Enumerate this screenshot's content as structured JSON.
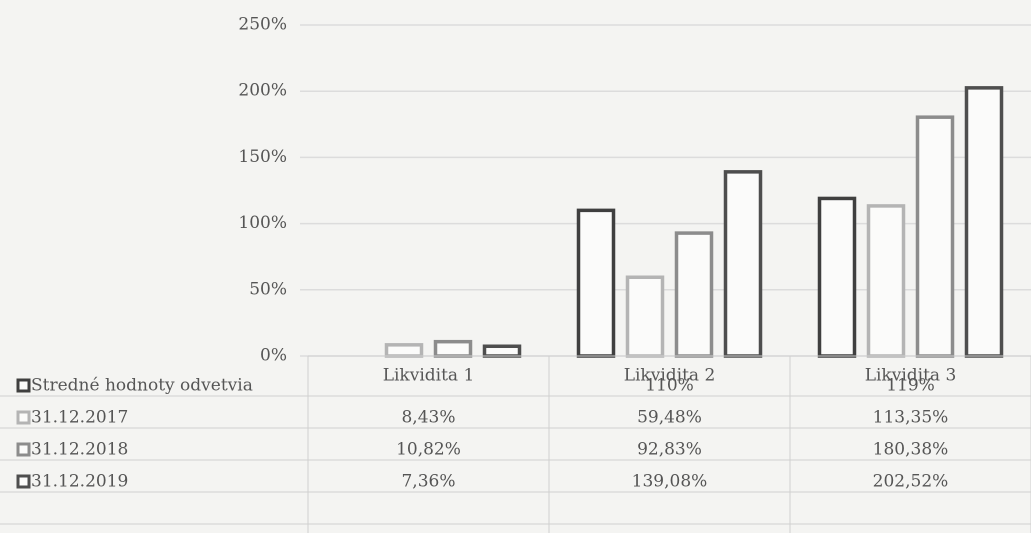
{
  "chart_data": {
    "type": "bar",
    "categories": [
      "Likvidita 1",
      "Likvidita 2",
      "Likvidita 3"
    ],
    "series": [
      {
        "name": "Stredné hodnoty odvetvia",
        "color": "#3f3f3f",
        "values": [
          null,
          110,
          119
        ],
        "value_labels": [
          null,
          "110%",
          "119%"
        ]
      },
      {
        "name": "31.12.2017",
        "color": "#b4b4b4",
        "values": [
          8.43,
          59.48,
          113.35
        ],
        "value_labels": [
          "8,43%",
          "59,48%",
          "113,35%"
        ]
      },
      {
        "name": "31.12.2018",
        "color": "#8c8c8c",
        "values": [
          10.82,
          92.83,
          180.38
        ],
        "value_labels": [
          "10,82%",
          "92,83%",
          "180,38%"
        ]
      },
      {
        "name": "31.12.2019",
        "color": "#4e4e4e",
        "values": [
          7.36,
          139.08,
          202.52
        ],
        "value_labels": [
          "7,36%",
          "139,08%",
          "202,52%"
        ]
      }
    ],
    "ylim": [
      0,
      250
    ],
    "yticks": [
      {
        "value": 0,
        "label": "0%"
      },
      {
        "value": 50,
        "label": "50%"
      },
      {
        "value": 100,
        "label": "100%"
      },
      {
        "value": 150,
        "label": "150%"
      },
      {
        "value": 200,
        "label": "200%"
      },
      {
        "value": 250,
        "label": "250%"
      }
    ],
    "grid": true
  }
}
